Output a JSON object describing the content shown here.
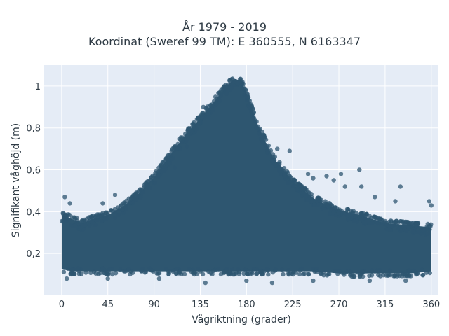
{
  "chart_data": {
    "type": "scatter",
    "title": "År 1979 - 2019",
    "subtitle": "Koordinat (Sweref 99 TM): E 360555, N 6163347",
    "xlabel": "Vågriktning (grader)",
    "ylabel": "Signifikant våghöjd (m)",
    "xlim": [
      -17,
      367
    ],
    "ylim": [
      0.0,
      1.1
    ],
    "x_ticks": [
      0,
      45,
      90,
      135,
      180,
      225,
      270,
      315,
      360
    ],
    "x_tick_labels": [
      "0",
      "45",
      "90",
      "135",
      "180",
      "225",
      "270",
      "315",
      "360"
    ],
    "y_ticks": [
      0.2,
      0.4,
      0.6,
      0.8,
      1.0
    ],
    "y_tick_labels": [
      "0,2",
      "0,4",
      "0,6",
      "0,8",
      "1"
    ],
    "grid": true,
    "background": "#e5ecf6",
    "marker_color": "#2e5670",
    "envelope": {
      "x": [
        0,
        10,
        20,
        30,
        45,
        60,
        75,
        90,
        105,
        120,
        135,
        145,
        155,
        162,
        168,
        175,
        180,
        190,
        205,
        225,
        245,
        270,
        290,
        315,
        340,
        360
      ],
      "lower": [
        0.11,
        0.1,
        0.1,
        0.1,
        0.1,
        0.1,
        0.1,
        0.1,
        0.1,
        0.1,
        0.1,
        0.1,
        0.1,
        0.1,
        0.1,
        0.1,
        0.1,
        0.1,
        0.1,
        0.1,
        0.1,
        0.09,
        0.09,
        0.09,
        0.09,
        0.1
      ],
      "upper": [
        0.4,
        0.38,
        0.36,
        0.38,
        0.4,
        0.44,
        0.5,
        0.58,
        0.68,
        0.78,
        0.86,
        0.92,
        0.98,
        1.02,
        1.05,
        1.04,
        0.98,
        0.84,
        0.68,
        0.56,
        0.48,
        0.42,
        0.4,
        0.36,
        0.35,
        0.34
      ]
    },
    "outliers": [
      {
        "x": 3,
        "y": 0.47
      },
      {
        "x": 8,
        "y": 0.44
      },
      {
        "x": 40,
        "y": 0.44
      },
      {
        "x": 52,
        "y": 0.48
      },
      {
        "x": 105,
        "y": 0.63
      },
      {
        "x": 110,
        "y": 0.61
      },
      {
        "x": 122,
        "y": 0.71
      },
      {
        "x": 128,
        "y": 0.82
      },
      {
        "x": 138,
        "y": 0.9
      },
      {
        "x": 143,
        "y": 0.85
      },
      {
        "x": 198,
        "y": 0.72
      },
      {
        "x": 210,
        "y": 0.7
      },
      {
        "x": 212,
        "y": 0.61
      },
      {
        "x": 222,
        "y": 0.69
      },
      {
        "x": 240,
        "y": 0.58
      },
      {
        "x": 245,
        "y": 0.56
      },
      {
        "x": 258,
        "y": 0.57
      },
      {
        "x": 265,
        "y": 0.55
      },
      {
        "x": 272,
        "y": 0.58
      },
      {
        "x": 276,
        "y": 0.52
      },
      {
        "x": 290,
        "y": 0.6
      },
      {
        "x": 292,
        "y": 0.52
      },
      {
        "x": 305,
        "y": 0.47
      },
      {
        "x": 325,
        "y": 0.45
      },
      {
        "x": 330,
        "y": 0.52
      },
      {
        "x": 358,
        "y": 0.45
      },
      {
        "x": 360,
        "y": 0.43
      },
      {
        "x": 5,
        "y": 0.08
      },
      {
        "x": 45,
        "y": 0.08
      },
      {
        "x": 95,
        "y": 0.08
      },
      {
        "x": 140,
        "y": 0.06
      },
      {
        "x": 180,
        "y": 0.07
      },
      {
        "x": 205,
        "y": 0.06
      },
      {
        "x": 245,
        "y": 0.07
      },
      {
        "x": 300,
        "y": 0.07
      },
      {
        "x": 335,
        "y": 0.07
      }
    ]
  }
}
